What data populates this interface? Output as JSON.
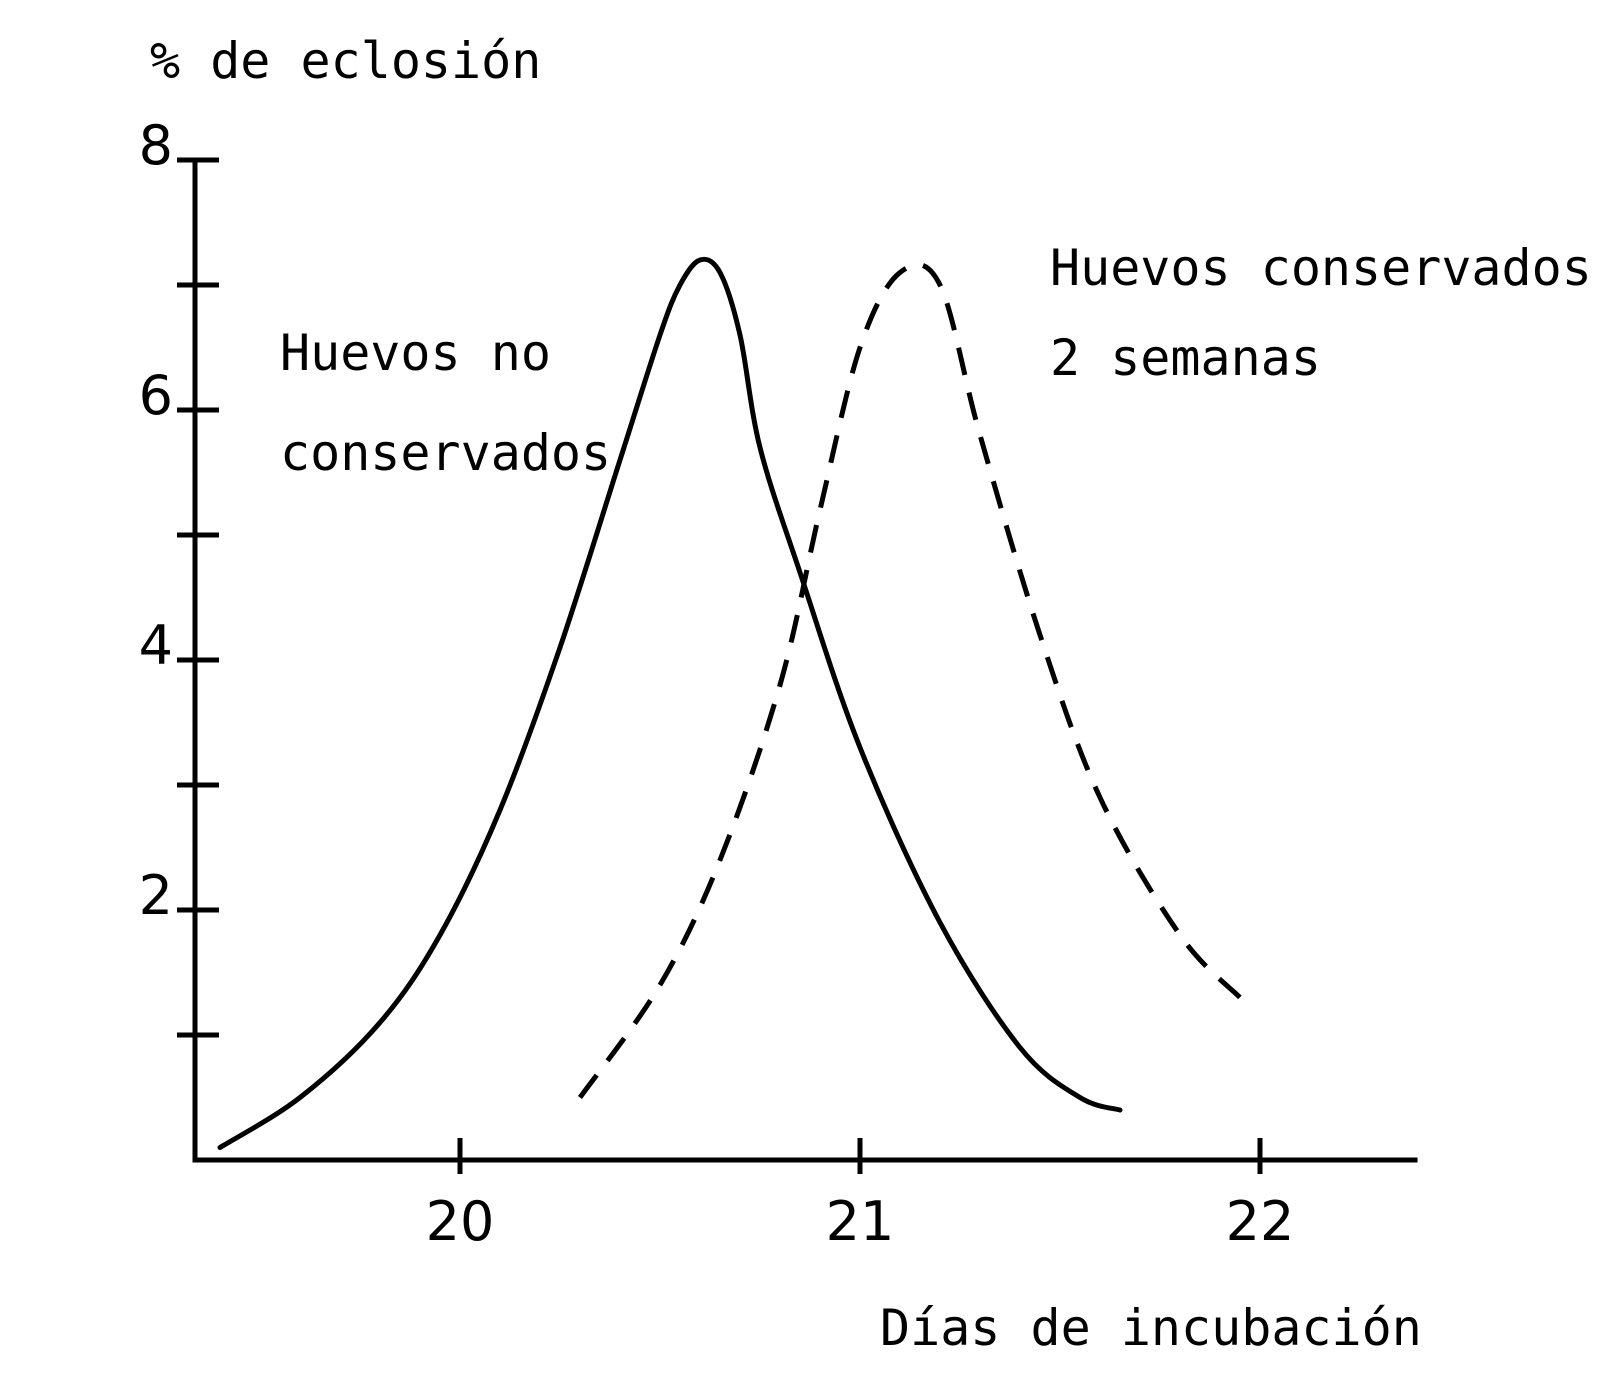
{
  "chart_data": {
    "type": "line",
    "ylabel": "% de eclosión",
    "xlabel": "Días de incubación",
    "xlim": [
      19.2,
      22.3
    ],
    "ylim": [
      0,
      8
    ],
    "x_ticks": [
      20,
      21,
      22
    ],
    "x_tick_labels": [
      "20",
      "21",
      "22"
    ],
    "y_ticks": [
      1,
      2,
      3,
      4,
      5,
      6,
      7,
      8
    ],
    "y_tick_labels": [
      "",
      "2",
      "",
      "4",
      "",
      "6",
      "",
      "8"
    ],
    "grid": false,
    "series": [
      {
        "label_lines": [
          "Huevos no",
          "conservados"
        ],
        "style": "solid",
        "x": [
          19.4,
          19.6,
          19.8,
          19.95,
          20.1,
          20.25,
          20.4,
          20.5,
          20.55,
          20.6,
          20.65,
          20.7,
          20.75,
          20.85,
          21.0,
          21.2,
          21.4,
          21.55,
          21.65
        ],
        "y": [
          0.1,
          0.5,
          1.1,
          1.8,
          2.8,
          4.1,
          5.6,
          6.6,
          7.0,
          7.2,
          7.1,
          6.6,
          5.7,
          4.7,
          3.3,
          1.9,
          0.9,
          0.5,
          0.4
        ]
      },
      {
        "label_lines": [
          "Huevos conservados",
          "2 semanas"
        ],
        "style": "dashed",
        "x": [
          20.3,
          20.5,
          20.65,
          20.8,
          20.9,
          21.0,
          21.1,
          21.2,
          21.3,
          21.45,
          21.6,
          21.8,
          21.95
        ],
        "y": [
          0.5,
          1.4,
          2.4,
          3.8,
          5.2,
          6.5,
          7.1,
          7.0,
          5.8,
          4.2,
          2.9,
          1.8,
          1.3
        ]
      }
    ]
  }
}
